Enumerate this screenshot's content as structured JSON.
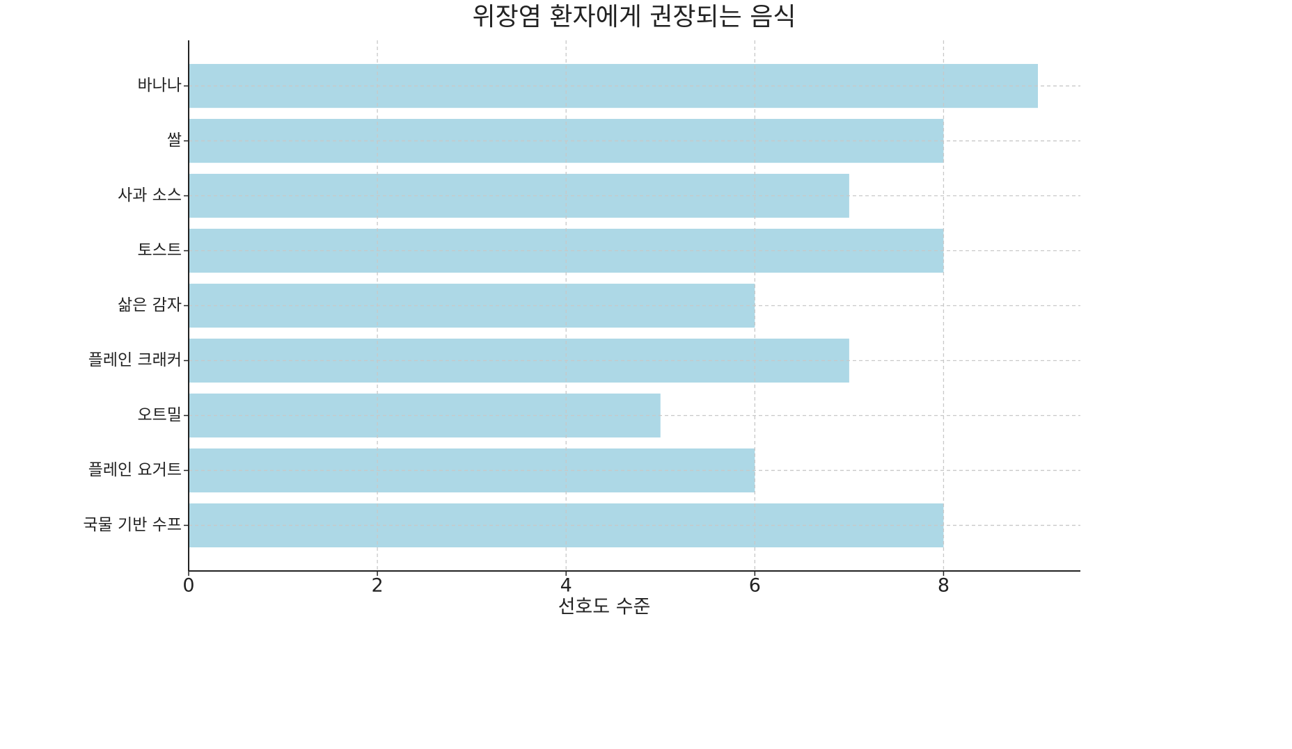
{
  "chart_data": {
    "type": "barh",
    "title": "위장염 환자에게 권장되는 음식",
    "xlabel": "선호도 수준",
    "categories": [
      "바나나",
      "쌀",
      "사과 소스",
      "토스트",
      "삶은 감자",
      "플레인 크래커",
      "오트밀",
      "플레인 요거트",
      "국물 기반 수프"
    ],
    "values": [
      9,
      8,
      7,
      8,
      6,
      7,
      5,
      6,
      8
    ],
    "color": "#add8e6",
    "xlim": [
      0,
      9.45
    ],
    "xticks": [
      0,
      2,
      4,
      6,
      8
    ],
    "grid": true
  }
}
